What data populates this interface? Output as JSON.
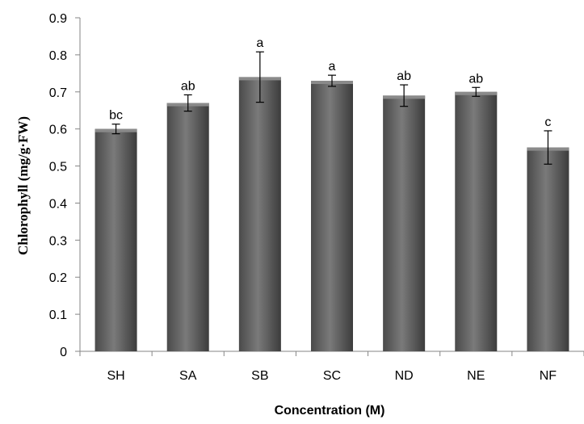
{
  "chart_data": {
    "type": "bar",
    "categories": [
      "SH",
      "SA",
      "SB",
      "SC",
      "ND",
      "NE",
      "NF"
    ],
    "values": [
      0.6,
      0.67,
      0.74,
      0.73,
      0.69,
      0.7,
      0.55
    ],
    "errors": [
      0.013,
      0.022,
      0.068,
      0.015,
      0.029,
      0.012,
      0.045
    ],
    "significance_labels": [
      "bc",
      "ab",
      "a",
      "a",
      "ab",
      "ab",
      "c"
    ],
    "xlabel": "Concentration (M)",
    "ylabel": "Chlorophyll (mg/g·FW)",
    "ylim": [
      0,
      0.9
    ],
    "yticks": [
      "0",
      "0.1",
      "0.2",
      "0.3",
      "0.4",
      "0.5",
      "0.6",
      "0.7",
      "0.8",
      "0.9"
    ],
    "grid": false,
    "colors": {
      "bar": "#5a5a5a",
      "bar_light": "#8a8a8a",
      "bar_dark": "#3a3a3a",
      "axis": "#868686"
    }
  }
}
